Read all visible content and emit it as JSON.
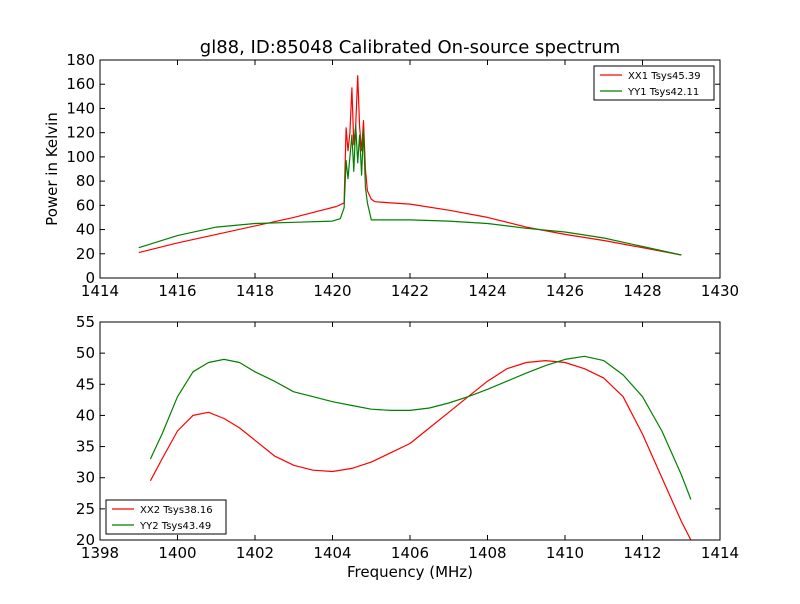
{
  "figure": {
    "title": "gl88, ID:85048 Calibrated On-source spectrum"
  },
  "chart_data": [
    {
      "type": "line",
      "title": "gl88, ID:85048 Calibrated On-source spectrum",
      "xlabel": "",
      "ylabel": "Power in Kelvin",
      "xlim": [
        1414,
        1430
      ],
      "ylim": [
        0,
        180
      ],
      "xticks": [
        "1414",
        "1416",
        "1418",
        "1420",
        "1422",
        "1424",
        "1426",
        "1428",
        "1430"
      ],
      "yticks": [
        "0",
        "20",
        "40",
        "60",
        "80",
        "100",
        "120",
        "140",
        "160",
        "180"
      ],
      "legend": "top-right",
      "grid": false,
      "series": [
        {
          "name": "XX1 Tsys45.39",
          "color": "#ff0000",
          "points": [
            [
              1415,
              21
            ],
            [
              1416,
              29
            ],
            [
              1417,
              36
            ],
            [
              1418,
              43
            ],
            [
              1419,
              50
            ],
            [
              1419.6,
              55
            ],
            [
              1420.1,
              59
            ],
            [
              1420.3,
              62
            ],
            [
              1420.35,
              124
            ],
            [
              1420.4,
              105
            ],
            [
              1420.45,
              120
            ],
            [
              1420.5,
              157
            ],
            [
              1420.55,
              110
            ],
            [
              1420.6,
              126
            ],
            [
              1420.65,
              167
            ],
            [
              1420.7,
              125
            ],
            [
              1420.75,
              105
            ],
            [
              1420.8,
              130
            ],
            [
              1420.85,
              90
            ],
            [
              1420.9,
              72
            ],
            [
              1421.0,
              65
            ],
            [
              1421.1,
              63
            ],
            [
              1421.5,
              62
            ],
            [
              1422,
              61
            ],
            [
              1423,
              56
            ],
            [
              1424,
              50
            ],
            [
              1425,
              42
            ],
            [
              1426,
              36
            ],
            [
              1427,
              31
            ],
            [
              1428,
              25
            ],
            [
              1429,
              19
            ]
          ]
        },
        {
          "name": "YY1 Tsys42.11",
          "color": "#008000",
          "points": [
            [
              1415,
              25
            ],
            [
              1416,
              35
            ],
            [
              1417,
              42
            ],
            [
              1418,
              45
            ],
            [
              1419,
              46
            ],
            [
              1420,
              47
            ],
            [
              1420.2,
              49
            ],
            [
              1420.3,
              58
            ],
            [
              1420.35,
              97
            ],
            [
              1420.4,
              82
            ],
            [
              1420.45,
              100
            ],
            [
              1420.5,
              118
            ],
            [
              1420.55,
              88
            ],
            [
              1420.6,
              126
            ],
            [
              1420.65,
              95
            ],
            [
              1420.7,
              118
            ],
            [
              1420.75,
              85
            ],
            [
              1420.8,
              122
            ],
            [
              1420.85,
              75
            ],
            [
              1420.9,
              62
            ],
            [
              1421.0,
              48
            ],
            [
              1422,
              48
            ],
            [
              1423,
              47
            ],
            [
              1424,
              45
            ],
            [
              1425,
              41
            ],
            [
              1426,
              38
            ],
            [
              1427,
              33
            ],
            [
              1428,
              26
            ],
            [
              1429,
              19
            ]
          ]
        }
      ]
    },
    {
      "type": "line",
      "title": "",
      "xlabel": "Frequency (MHz)",
      "ylabel": "",
      "xlim": [
        1398,
        1414
      ],
      "ylim": [
        20,
        55
      ],
      "xticks": [
        "1398",
        "1400",
        "1402",
        "1404",
        "1406",
        "1408",
        "1410",
        "1412",
        "1414"
      ],
      "yticks": [
        "20",
        "25",
        "30",
        "35",
        "40",
        "45",
        "50",
        "55"
      ],
      "legend": "bottom-left",
      "grid": false,
      "series": [
        {
          "name": "XX2 Tsys38.16",
          "color": "#ff0000",
          "points": [
            [
              1399.3,
              29.5
            ],
            [
              1399.6,
              33
            ],
            [
              1400,
              37.5
            ],
            [
              1400.4,
              40
            ],
            [
              1400.8,
              40.5
            ],
            [
              1401.2,
              39.5
            ],
            [
              1401.6,
              38
            ],
            [
              1402,
              36
            ],
            [
              1402.5,
              33.5
            ],
            [
              1403,
              32
            ],
            [
              1403.5,
              31.2
            ],
            [
              1404,
              31
            ],
            [
              1404.5,
              31.5
            ],
            [
              1405,
              32.5
            ],
            [
              1405.5,
              34
            ],
            [
              1406,
              35.5
            ],
            [
              1406.5,
              38
            ],
            [
              1407,
              40.5
            ],
            [
              1407.5,
              43
            ],
            [
              1408,
              45.5
            ],
            [
              1408.5,
              47.5
            ],
            [
              1409,
              48.5
            ],
            [
              1409.5,
              48.8
            ],
            [
              1410,
              48.5
            ],
            [
              1410.5,
              47.5
            ],
            [
              1411,
              46
            ],
            [
              1411.5,
              43
            ],
            [
              1412,
              37
            ],
            [
              1412.5,
              30
            ],
            [
              1413,
              23
            ],
            [
              1413.25,
              20
            ]
          ]
        },
        {
          "name": "YY2 Tsys43.49",
          "color": "#008000",
          "points": [
            [
              1399.3,
              33
            ],
            [
              1399.6,
              37
            ],
            [
              1400,
              43
            ],
            [
              1400.4,
              47
            ],
            [
              1400.8,
              48.5
            ],
            [
              1401.2,
              49
            ],
            [
              1401.6,
              48.5
            ],
            [
              1402,
              47
            ],
            [
              1402.5,
              45.5
            ],
            [
              1403,
              43.8
            ],
            [
              1403.5,
              43
            ],
            [
              1404,
              42.2
            ],
            [
              1404.5,
              41.6
            ],
            [
              1405,
              41
            ],
            [
              1405.5,
              40.8
            ],
            [
              1406,
              40.8
            ],
            [
              1406.5,
              41.2
            ],
            [
              1407,
              42
            ],
            [
              1407.5,
              43
            ],
            [
              1408,
              44.2
            ],
            [
              1408.5,
              45.5
            ],
            [
              1409,
              46.8
            ],
            [
              1409.5,
              48
            ],
            [
              1410,
              49
            ],
            [
              1410.5,
              49.5
            ],
            [
              1411,
              48.8
            ],
            [
              1411.5,
              46.5
            ],
            [
              1412,
              43
            ],
            [
              1412.5,
              37.5
            ],
            [
              1413,
              30.5
            ],
            [
              1413.25,
              26.5
            ]
          ]
        }
      ]
    }
  ]
}
